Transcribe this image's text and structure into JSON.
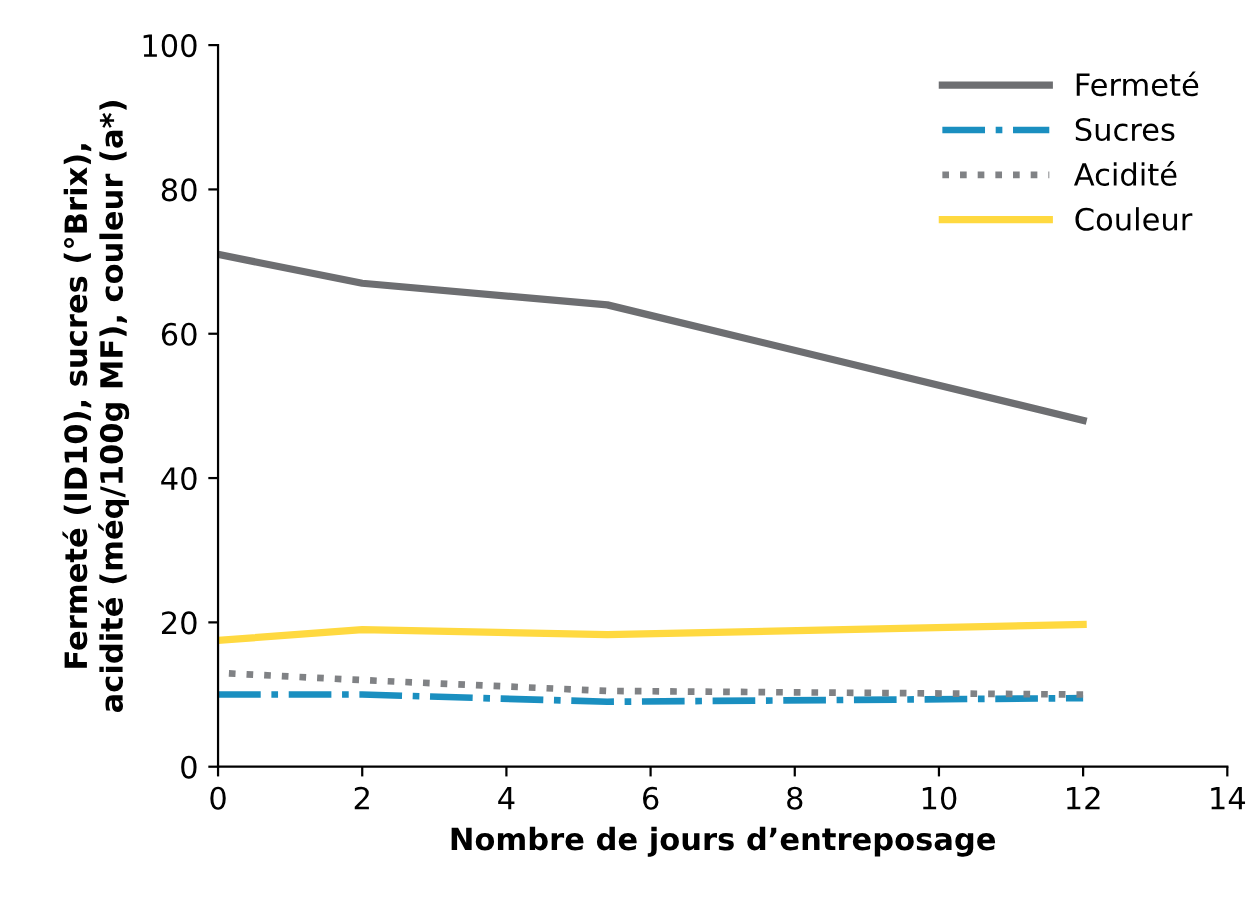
{
  "chart_data": {
    "type": "line",
    "xlabel": "Nombre de jours d’entreposage",
    "ylabel": "Fermeté (ID10), sucres (°Brix),\nacidité (méq/100g MF), couleur (a*)",
    "x": [
      0,
      2,
      5.4,
      12
    ],
    "series": [
      {
        "name": "Fermeté",
        "color": "#6d6e71",
        "line_style": "solid",
        "values": [
          71,
          67,
          64,
          48
        ]
      },
      {
        "name": "Sucres",
        "color": "#1a8fc0",
        "line_style": "dashdot",
        "values": [
          10,
          10,
          9,
          9.5
        ]
      },
      {
        "name": "Acidité",
        "color": "#808285",
        "line_style": "dotted",
        "values": [
          13,
          12,
          10.5,
          10
        ]
      },
      {
        "name": "Couleur",
        "color": "#ffd940",
        "line_style": "solid",
        "values": [
          17.5,
          19,
          18.3,
          19.7
        ]
      }
    ],
    "xlim": [
      0,
      14
    ],
    "xticks": [
      0,
      2,
      4,
      6,
      8,
      10,
      12,
      14
    ],
    "ylim": [
      0,
      100
    ],
    "yticks": [
      0,
      20,
      40,
      60,
      80,
      100
    ],
    "grid": false,
    "legend": "top right",
    "marker": "none"
  }
}
